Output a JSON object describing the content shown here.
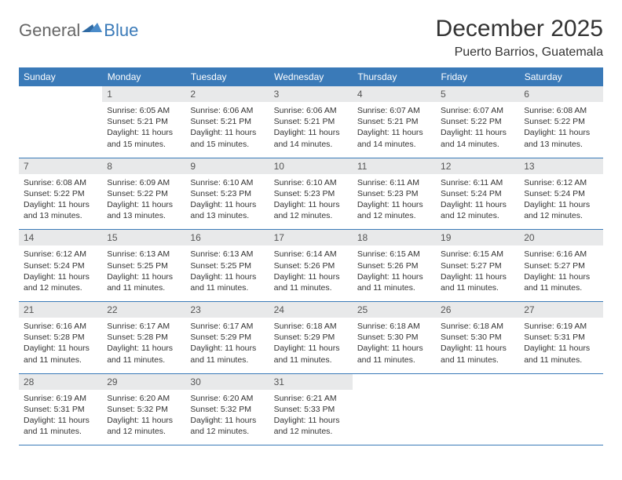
{
  "logo": {
    "general": "General",
    "blue": "Blue"
  },
  "title": "December 2025",
  "location": "Puerto Barrios, Guatemala",
  "days_of_week": [
    "Sunday",
    "Monday",
    "Tuesday",
    "Wednesday",
    "Thursday",
    "Friday",
    "Saturday"
  ],
  "colors": {
    "header_bg": "#3a7ab8",
    "header_text": "#ffffff",
    "daynum_bg": "#e8e9ea",
    "border": "#3a7ab8",
    "text": "#333333"
  },
  "fonts": {
    "title_size_pt": 30,
    "location_size_pt": 16,
    "dow_size_pt": 12,
    "daynum_size_pt": 12,
    "content_size_pt": 10.5
  },
  "layout": {
    "columns": 7,
    "rows": 5,
    "first_weekday_offset": 1
  },
  "weeks": [
    [
      {
        "n": "",
        "sunrise": "",
        "sunset": "",
        "daylight": ""
      },
      {
        "n": "1",
        "sunrise": "Sunrise: 6:05 AM",
        "sunset": "Sunset: 5:21 PM",
        "daylight": "Daylight: 11 hours and 15 minutes."
      },
      {
        "n": "2",
        "sunrise": "Sunrise: 6:06 AM",
        "sunset": "Sunset: 5:21 PM",
        "daylight": "Daylight: 11 hours and 15 minutes."
      },
      {
        "n": "3",
        "sunrise": "Sunrise: 6:06 AM",
        "sunset": "Sunset: 5:21 PM",
        "daylight": "Daylight: 11 hours and 14 minutes."
      },
      {
        "n": "4",
        "sunrise": "Sunrise: 6:07 AM",
        "sunset": "Sunset: 5:21 PM",
        "daylight": "Daylight: 11 hours and 14 minutes."
      },
      {
        "n": "5",
        "sunrise": "Sunrise: 6:07 AM",
        "sunset": "Sunset: 5:22 PM",
        "daylight": "Daylight: 11 hours and 14 minutes."
      },
      {
        "n": "6",
        "sunrise": "Sunrise: 6:08 AM",
        "sunset": "Sunset: 5:22 PM",
        "daylight": "Daylight: 11 hours and 13 minutes."
      }
    ],
    [
      {
        "n": "7",
        "sunrise": "Sunrise: 6:08 AM",
        "sunset": "Sunset: 5:22 PM",
        "daylight": "Daylight: 11 hours and 13 minutes."
      },
      {
        "n": "8",
        "sunrise": "Sunrise: 6:09 AM",
        "sunset": "Sunset: 5:22 PM",
        "daylight": "Daylight: 11 hours and 13 minutes."
      },
      {
        "n": "9",
        "sunrise": "Sunrise: 6:10 AM",
        "sunset": "Sunset: 5:23 PM",
        "daylight": "Daylight: 11 hours and 13 minutes."
      },
      {
        "n": "10",
        "sunrise": "Sunrise: 6:10 AM",
        "sunset": "Sunset: 5:23 PM",
        "daylight": "Daylight: 11 hours and 12 minutes."
      },
      {
        "n": "11",
        "sunrise": "Sunrise: 6:11 AM",
        "sunset": "Sunset: 5:23 PM",
        "daylight": "Daylight: 11 hours and 12 minutes."
      },
      {
        "n": "12",
        "sunrise": "Sunrise: 6:11 AM",
        "sunset": "Sunset: 5:24 PM",
        "daylight": "Daylight: 11 hours and 12 minutes."
      },
      {
        "n": "13",
        "sunrise": "Sunrise: 6:12 AM",
        "sunset": "Sunset: 5:24 PM",
        "daylight": "Daylight: 11 hours and 12 minutes."
      }
    ],
    [
      {
        "n": "14",
        "sunrise": "Sunrise: 6:12 AM",
        "sunset": "Sunset: 5:24 PM",
        "daylight": "Daylight: 11 hours and 12 minutes."
      },
      {
        "n": "15",
        "sunrise": "Sunrise: 6:13 AM",
        "sunset": "Sunset: 5:25 PM",
        "daylight": "Daylight: 11 hours and 11 minutes."
      },
      {
        "n": "16",
        "sunrise": "Sunrise: 6:13 AM",
        "sunset": "Sunset: 5:25 PM",
        "daylight": "Daylight: 11 hours and 11 minutes."
      },
      {
        "n": "17",
        "sunrise": "Sunrise: 6:14 AM",
        "sunset": "Sunset: 5:26 PM",
        "daylight": "Daylight: 11 hours and 11 minutes."
      },
      {
        "n": "18",
        "sunrise": "Sunrise: 6:15 AM",
        "sunset": "Sunset: 5:26 PM",
        "daylight": "Daylight: 11 hours and 11 minutes."
      },
      {
        "n": "19",
        "sunrise": "Sunrise: 6:15 AM",
        "sunset": "Sunset: 5:27 PM",
        "daylight": "Daylight: 11 hours and 11 minutes."
      },
      {
        "n": "20",
        "sunrise": "Sunrise: 6:16 AM",
        "sunset": "Sunset: 5:27 PM",
        "daylight": "Daylight: 11 hours and 11 minutes."
      }
    ],
    [
      {
        "n": "21",
        "sunrise": "Sunrise: 6:16 AM",
        "sunset": "Sunset: 5:28 PM",
        "daylight": "Daylight: 11 hours and 11 minutes."
      },
      {
        "n": "22",
        "sunrise": "Sunrise: 6:17 AM",
        "sunset": "Sunset: 5:28 PM",
        "daylight": "Daylight: 11 hours and 11 minutes."
      },
      {
        "n": "23",
        "sunrise": "Sunrise: 6:17 AM",
        "sunset": "Sunset: 5:29 PM",
        "daylight": "Daylight: 11 hours and 11 minutes."
      },
      {
        "n": "24",
        "sunrise": "Sunrise: 6:18 AM",
        "sunset": "Sunset: 5:29 PM",
        "daylight": "Daylight: 11 hours and 11 minutes."
      },
      {
        "n": "25",
        "sunrise": "Sunrise: 6:18 AM",
        "sunset": "Sunset: 5:30 PM",
        "daylight": "Daylight: 11 hours and 11 minutes."
      },
      {
        "n": "26",
        "sunrise": "Sunrise: 6:18 AM",
        "sunset": "Sunset: 5:30 PM",
        "daylight": "Daylight: 11 hours and 11 minutes."
      },
      {
        "n": "27",
        "sunrise": "Sunrise: 6:19 AM",
        "sunset": "Sunset: 5:31 PM",
        "daylight": "Daylight: 11 hours and 11 minutes."
      }
    ],
    [
      {
        "n": "28",
        "sunrise": "Sunrise: 6:19 AM",
        "sunset": "Sunset: 5:31 PM",
        "daylight": "Daylight: 11 hours and 11 minutes."
      },
      {
        "n": "29",
        "sunrise": "Sunrise: 6:20 AM",
        "sunset": "Sunset: 5:32 PM",
        "daylight": "Daylight: 11 hours and 12 minutes."
      },
      {
        "n": "30",
        "sunrise": "Sunrise: 6:20 AM",
        "sunset": "Sunset: 5:32 PM",
        "daylight": "Daylight: 11 hours and 12 minutes."
      },
      {
        "n": "31",
        "sunrise": "Sunrise: 6:21 AM",
        "sunset": "Sunset: 5:33 PM",
        "daylight": "Daylight: 11 hours and 12 minutes."
      },
      {
        "n": "",
        "sunrise": "",
        "sunset": "",
        "daylight": ""
      },
      {
        "n": "",
        "sunrise": "",
        "sunset": "",
        "daylight": ""
      },
      {
        "n": "",
        "sunrise": "",
        "sunset": "",
        "daylight": ""
      }
    ]
  ]
}
